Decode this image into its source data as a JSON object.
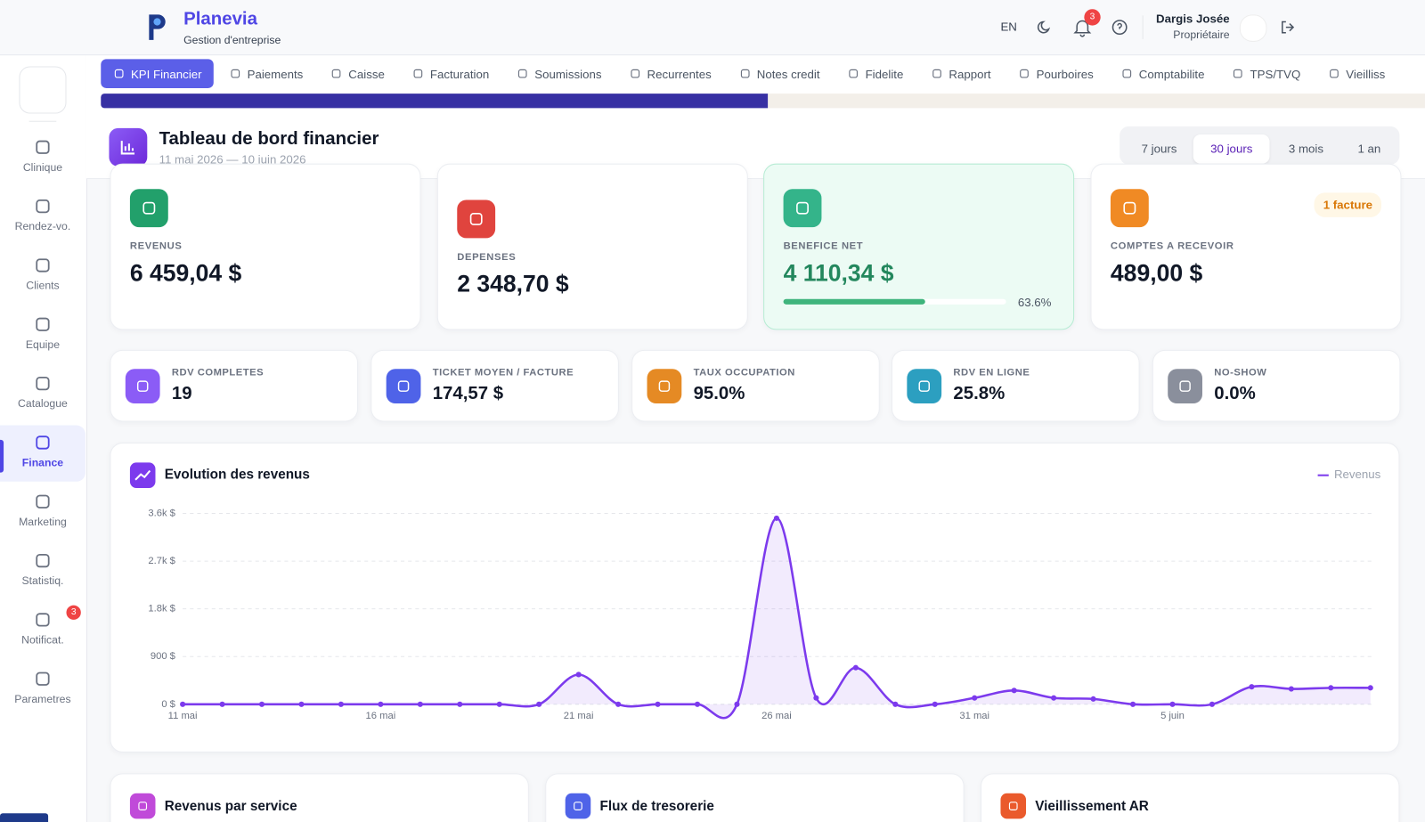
{
  "header": {
    "brand": "Planevia",
    "subtitle": "Gestion d'entreprise",
    "language": "EN",
    "notification_count": "3",
    "user_name": "Dargis Josée",
    "user_role": "Propriétaire"
  },
  "tabs": [
    "KPI Financier",
    "Paiements",
    "Caisse",
    "Facturation",
    "Soumissions",
    "Recurrentes",
    "Notes credit",
    "Fidelite",
    "Rapport",
    "Pourboires",
    "Comptabilite",
    "TPS/TVQ",
    "Vieilliss"
  ],
  "sidebar": {
    "items": [
      "Clinique",
      "Rendez-vo.",
      "Clients",
      "Equipe",
      "Catalogue",
      "Finance",
      "Marketing",
      "Statistiq.",
      "Notificat.",
      "Parametres"
    ],
    "notification_badge": "3"
  },
  "dashboard": {
    "title": "Tableau de bord financier",
    "period": "11 mai 2026 — 10 juin 2026",
    "ranges": [
      "7 jours",
      "30 jours",
      "3 mois",
      "1 an"
    ]
  },
  "kpis": [
    {
      "label": "REVENUS",
      "value": "6 459,04 $"
    },
    {
      "label": "DEPENSES",
      "value": "2 348,70 $"
    },
    {
      "label": "BENEFICE NET",
      "value": "4 110,34 $",
      "margin": "63.6%"
    },
    {
      "label": "COMPTES A RECEVOIR",
      "value": "489,00 $",
      "badge": "1 facture"
    }
  ],
  "stats": [
    {
      "label": "RDV COMPLETES",
      "value": "19"
    },
    {
      "label": "TICKET MOYEN / FACTURE",
      "value": "174,57 $"
    },
    {
      "label": "TAUX OCCUPATION",
      "value": "95.0%"
    },
    {
      "label": "RDV EN LIGNE",
      "value": "25.8%"
    },
    {
      "label": "NO-SHOW",
      "value": "0.0%"
    }
  ],
  "chart_data": {
    "type": "line",
    "title": "Evolution des revenus",
    "categories": [
      "11 mai",
      null,
      null,
      null,
      null,
      "16 mai",
      null,
      null,
      null,
      null,
      "21 mai",
      null,
      null,
      null,
      null,
      "26 mai",
      null,
      null,
      null,
      null,
      "31 mai",
      null,
      null,
      null,
      null,
      "5 juin",
      null,
      null,
      null,
      null,
      null
    ],
    "series": [
      {
        "name": "Revenus",
        "color": "#7c3aed",
        "values": [
          0,
          0,
          0,
          0,
          0,
          0,
          0,
          0,
          0,
          0,
          560,
          0,
          0,
          0,
          0,
          3510,
          120,
          690,
          0,
          0,
          120,
          260,
          120,
          100,
          0,
          0,
          0,
          330,
          290,
          310,
          310
        ]
      }
    ],
    "ylim": [
      0,
      3600
    ],
    "yticks": [
      {
        "value": 0,
        "label": "0 $"
      },
      {
        "value": 900,
        "label": "900 $"
      },
      {
        "value": 1800,
        "label": "1.8k $"
      },
      {
        "value": 2700,
        "label": "2.7k $"
      },
      {
        "value": 3600,
        "label": "3.6k $"
      }
    ],
    "grid": true
  },
  "bottom_cards": [
    "Revenus par service",
    "Flux de tresorerie",
    "Vieillissement AR"
  ]
}
